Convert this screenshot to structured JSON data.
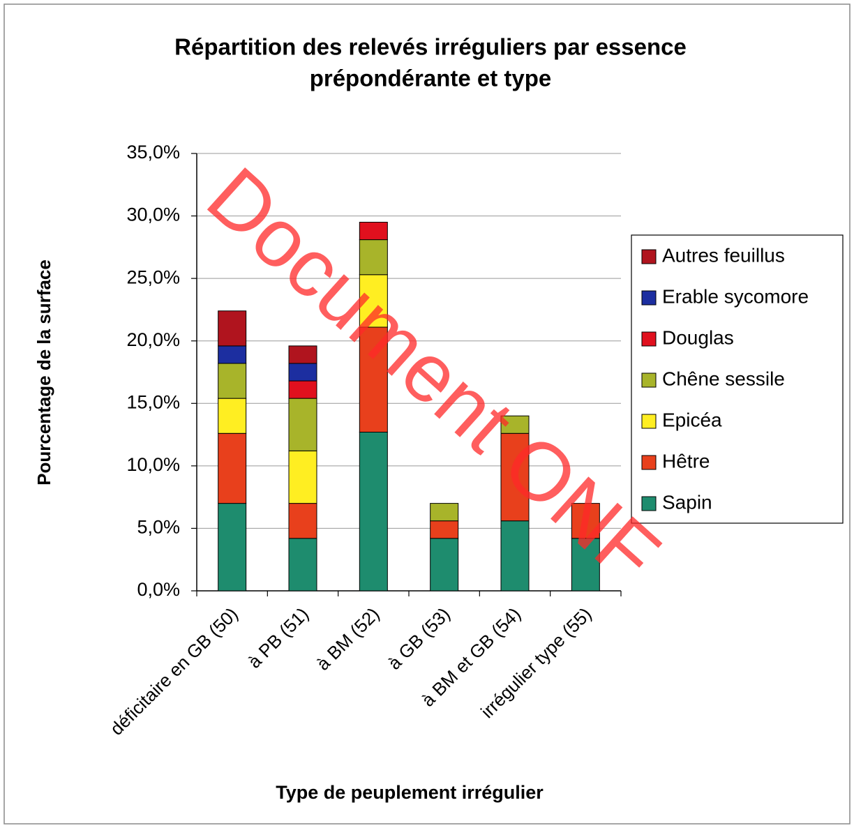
{
  "chart_data": {
    "type": "bar",
    "stacked": true,
    "title": [
      "Répartition des relevés irréguliers par essence",
      "prépondérante et type"
    ],
    "x_label": "Type de peuplement irrégulier",
    "y_label": "Pourcentage de la surface",
    "watermark": "Document ONF",
    "categories": [
      "déficitaire en GB (50)",
      "à PB (51)",
      "à BM (52)",
      "à GB (53)",
      "à BM et GB (54)",
      "irrégulier type (55)"
    ],
    "series": [
      {
        "name": "Sapin",
        "color": "#1e8c6e",
        "values": [
          7.0,
          4.2,
          12.7,
          4.2,
          5.6,
          4.2
        ]
      },
      {
        "name": "Hêtre",
        "color": "#e8401c",
        "values": [
          5.6,
          2.8,
          8.4,
          1.4,
          7.0,
          2.8
        ]
      },
      {
        "name": "Epicéa",
        "color": "#ffee22",
        "values": [
          2.8,
          4.2,
          4.2,
          0,
          0,
          0
        ]
      },
      {
        "name": "Chêne sessile",
        "color": "#a8b42a",
        "values": [
          2.8,
          4.2,
          2.8,
          1.4,
          1.4,
          0
        ]
      },
      {
        "name": "Douglas",
        "color": "#e0101e",
        "values": [
          0,
          1.4,
          1.4,
          0,
          0,
          0
        ]
      },
      {
        "name": "Erable sycomore",
        "color": "#1c2ea0",
        "values": [
          1.4,
          1.4,
          0,
          0,
          0,
          0
        ]
      },
      {
        "name": "Autres feuillus",
        "color": "#b0141e",
        "values": [
          2.8,
          1.4,
          0,
          0,
          0,
          0
        ]
      }
    ],
    "ylim": [
      0,
      35
    ],
    "yticks": [
      {
        "value": 0,
        "label": "0,0%"
      },
      {
        "value": 5,
        "label": "5,0%"
      },
      {
        "value": 10,
        "label": "10,0%"
      },
      {
        "value": 15,
        "label": "15,0%"
      },
      {
        "value": 20,
        "label": "20,0%"
      },
      {
        "value": 25,
        "label": "25,0%"
      },
      {
        "value": 30,
        "label": "30,0%"
      },
      {
        "value": 35,
        "label": "35,0%"
      }
    ],
    "grid": true,
    "legend": "right"
  }
}
